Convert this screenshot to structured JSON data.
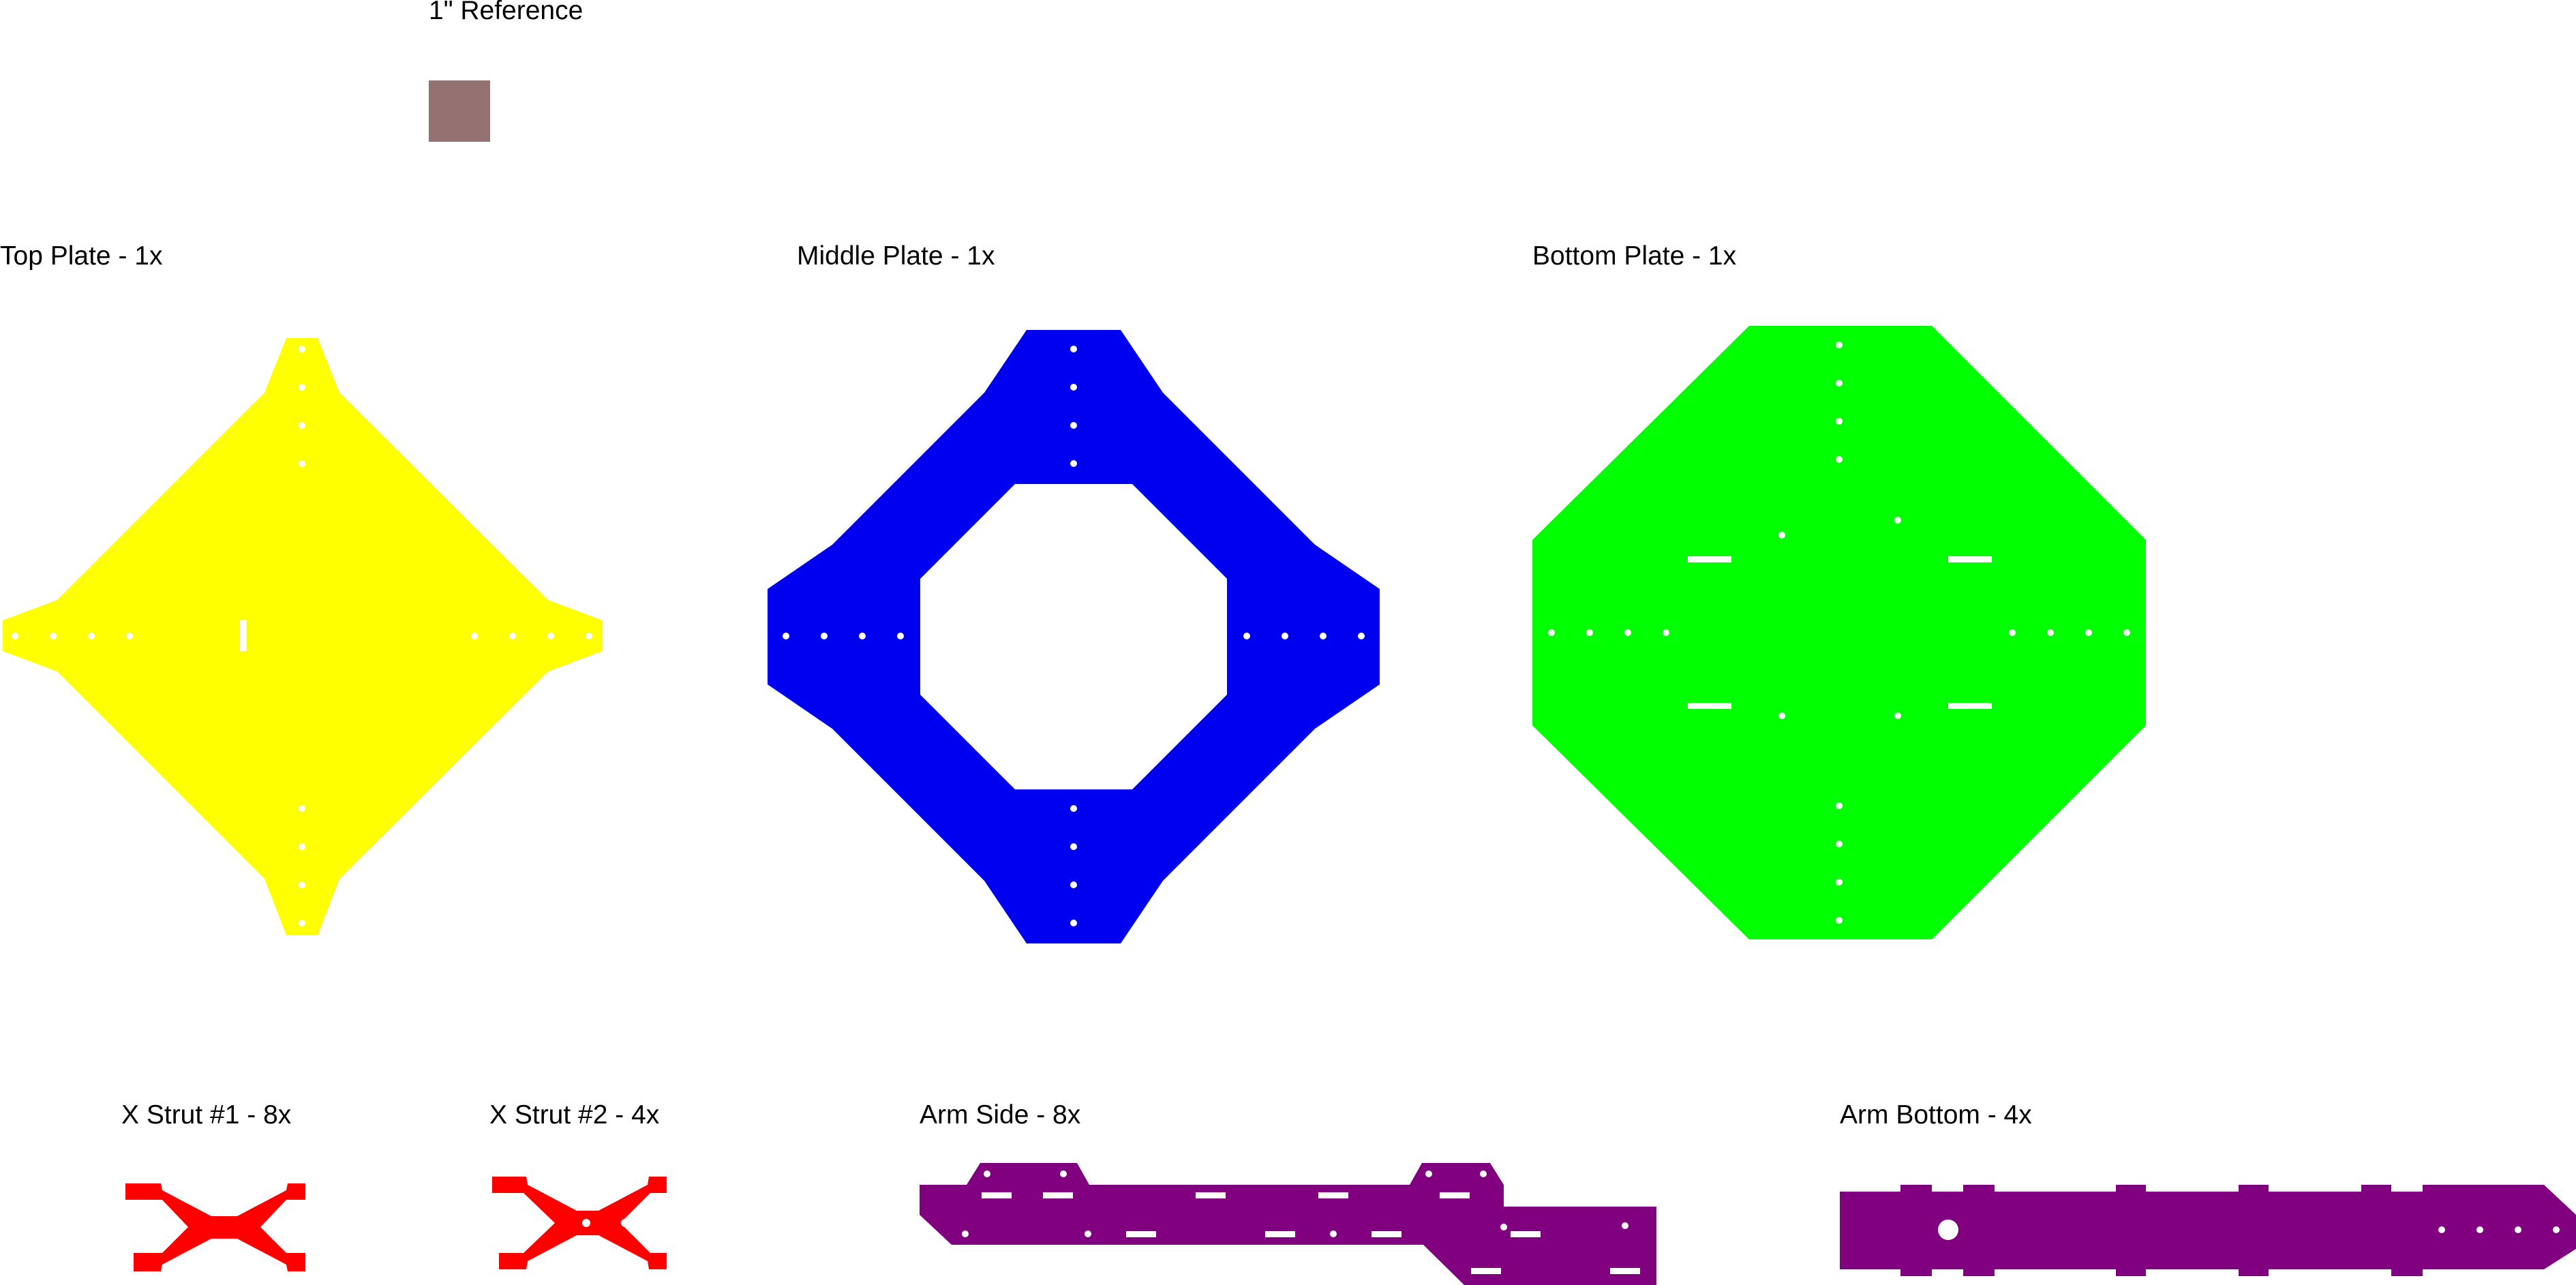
{
  "reference": {
    "label": "1\" Reference",
    "color": "#937271"
  },
  "parts": {
    "top_plate": {
      "label": "Top Plate - 1x",
      "color": "#FFFF00"
    },
    "middle_plate": {
      "label": "Middle Plate - 1x",
      "color": "#0000F0"
    },
    "bottom_plate": {
      "label": "Bottom Plate - 1x",
      "color": "#00FF00"
    },
    "x_strut_1": {
      "label": "X Strut #1 - 8x",
      "color": "#FF0000"
    },
    "x_strut_2": {
      "label": "X Strut #2 - 4x",
      "color": "#FF0000"
    },
    "arm_side": {
      "label": "Arm Side - 8x",
      "color": "#800080"
    },
    "arm_bottom": {
      "label": "Arm Bottom - 4x",
      "color": "#800080"
    }
  }
}
